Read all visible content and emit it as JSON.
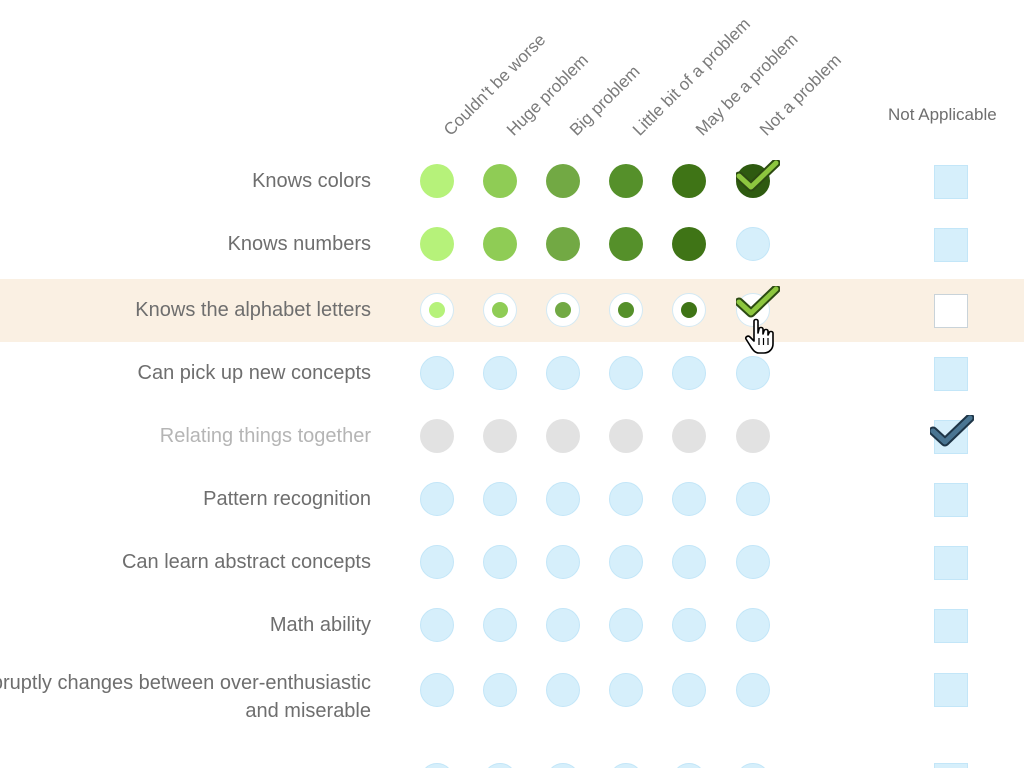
{
  "columns": [
    "Couldn't be worse",
    "Huge problem",
    "Big problem",
    "Little bit of a problem",
    "May be a problem",
    "Not a problem"
  ],
  "na_label": "Not Applicable",
  "scale_colors": [
    "#b6f27a",
    "#8fcc55",
    "#72a944",
    "#55902a",
    "#3f7416",
    "#2e5a10"
  ],
  "colors": {
    "empty": "#d6effb",
    "disabled": "#e2e2e2",
    "highlight": "#faf0e3",
    "check_green": "#8dc63f",
    "check_blue": "#2b4c63"
  },
  "rows": [
    {
      "label": "Knows colors",
      "state": "filled-checked"
    },
    {
      "label": "Knows numbers",
      "state": "filled"
    },
    {
      "label": "Knows the alphabet letters",
      "state": "hover"
    },
    {
      "label": "Can pick up new concepts",
      "state": "empty"
    },
    {
      "label": "Relating things together",
      "state": "na-checked"
    },
    {
      "label": "Pattern recognition",
      "state": "empty"
    },
    {
      "label": "Can learn abstract concepts",
      "state": "empty"
    },
    {
      "label": "Math ability",
      "state": "empty"
    },
    {
      "label": "Abruptly changes between over-enthusiastic and miserable",
      "state": "empty"
    }
  ]
}
